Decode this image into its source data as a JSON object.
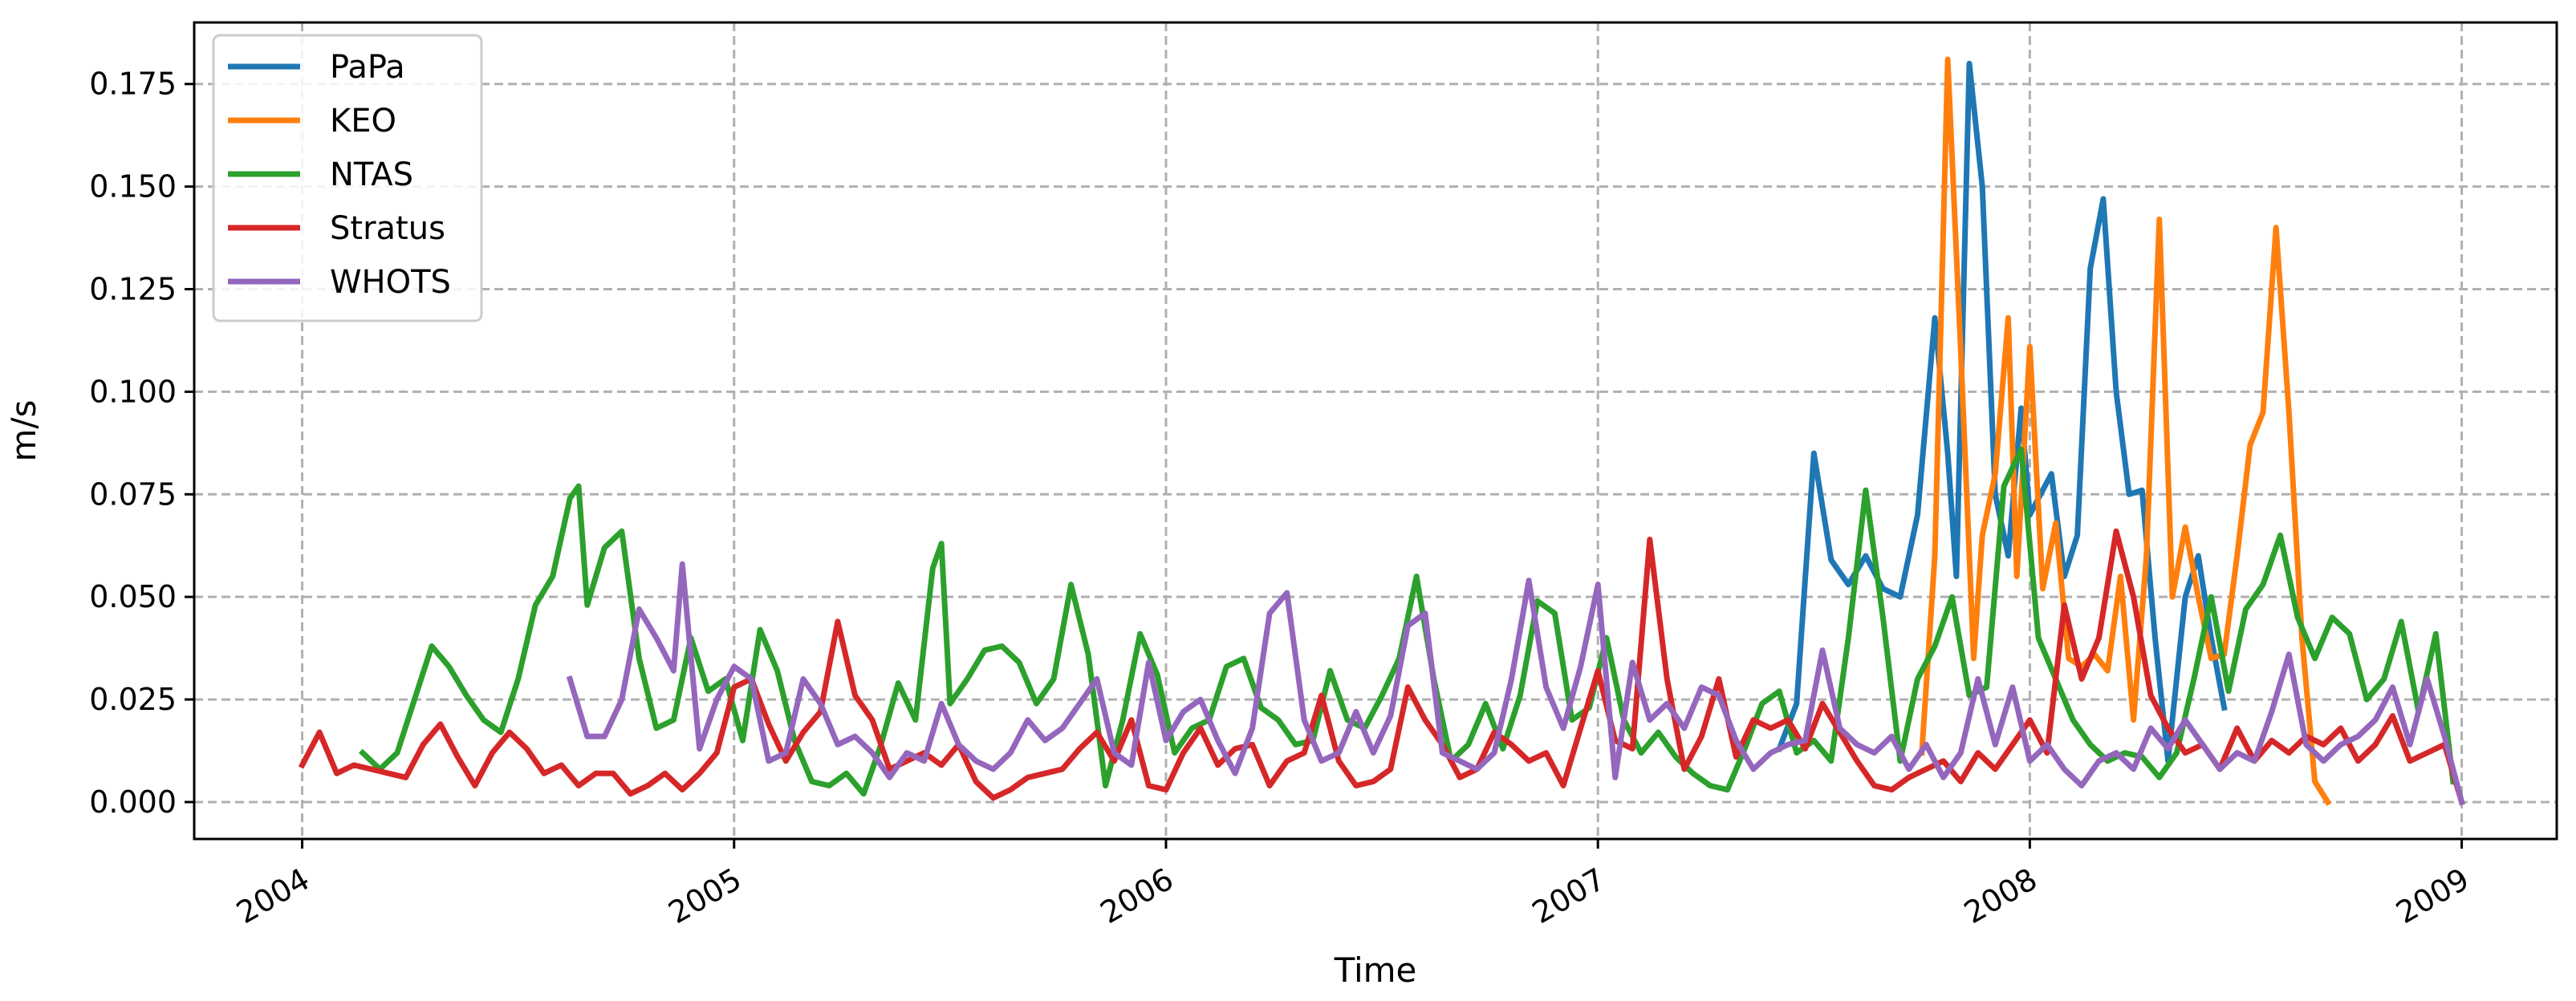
{
  "chart_data": {
    "type": "line",
    "title": "",
    "xlabel": "Time",
    "ylabel": "m/s",
    "xlim": [
      2003.75,
      2009.22
    ],
    "ylim": [
      -0.009,
      0.19
    ],
    "x_ticks": [
      2004,
      2005,
      2006,
      2007,
      2008,
      2009
    ],
    "x_tick_labels": [
      "2004",
      "2005",
      "2006",
      "2007",
      "2008",
      "2009"
    ],
    "y_ticks": [
      0.0,
      0.025,
      0.05,
      0.075,
      0.1,
      0.125,
      0.15,
      0.175
    ],
    "y_tick_labels": [
      "0.000",
      "0.025",
      "0.050",
      "0.075",
      "0.100",
      "0.125",
      "0.150",
      "0.175"
    ],
    "grid": true,
    "legend_position": "top-left",
    "series": [
      {
        "name": "PaPa",
        "color": "#1f77b4",
        "x": [
          2007.42,
          2007.46,
          2007.5,
          2007.54,
          2007.58,
          2007.62,
          2007.66,
          2007.7,
          2007.74,
          2007.78,
          2007.81,
          2007.83,
          2007.86,
          2007.89,
          2007.92,
          2007.95,
          2007.98,
          2008.0,
          2008.02,
          2008.05,
          2008.08,
          2008.11,
          2008.14,
          2008.17,
          2008.2,
          2008.23,
          2008.26,
          2008.29,
          2008.32,
          2008.36,
          2008.39,
          2008.42,
          2008.45
        ],
        "y": [
          0.013,
          0.024,
          0.085,
          0.059,
          0.053,
          0.06,
          0.052,
          0.05,
          0.07,
          0.118,
          0.085,
          0.055,
          0.18,
          0.15,
          0.075,
          0.06,
          0.096,
          0.07,
          0.074,
          0.08,
          0.055,
          0.065,
          0.13,
          0.147,
          0.1,
          0.075,
          0.076,
          0.04,
          0.01,
          0.05,
          0.06,
          0.04,
          0.023
        ]
      },
      {
        "name": "KEO",
        "color": "#ff7f0e",
        "x": [
          2007.75,
          2007.78,
          2007.81,
          2007.84,
          2007.87,
          2007.89,
          2007.92,
          2007.95,
          2007.97,
          2008.0,
          2008.03,
          2008.06,
          2008.09,
          2008.12,
          2008.15,
          2008.18,
          2008.21,
          2008.24,
          2008.27,
          2008.3,
          2008.33,
          2008.36,
          2008.39,
          2008.42,
          2008.45,
          2008.48,
          2008.51,
          2008.54,
          2008.57,
          2008.6,
          2008.63,
          2008.66,
          2008.69
        ],
        "y": [
          0.012,
          0.06,
          0.181,
          0.11,
          0.035,
          0.065,
          0.08,
          0.118,
          0.055,
          0.111,
          0.052,
          0.068,
          0.035,
          0.033,
          0.036,
          0.032,
          0.055,
          0.02,
          0.06,
          0.142,
          0.05,
          0.067,
          0.05,
          0.035,
          0.036,
          0.06,
          0.087,
          0.095,
          0.14,
          0.095,
          0.04,
          0.005,
          0.0
        ]
      },
      {
        "name": "NTAS",
        "color": "#2ca02c",
        "x": [
          2004.14,
          2004.18,
          2004.22,
          2004.26,
          2004.3,
          2004.34,
          2004.38,
          2004.42,
          2004.46,
          2004.5,
          2004.54,
          2004.58,
          2004.62,
          2004.64,
          2004.66,
          2004.7,
          2004.74,
          2004.78,
          2004.82,
          2004.86,
          2004.9,
          2004.94,
          2004.98,
          2005.02,
          2005.06,
          2005.1,
          2005.14,
          2005.18,
          2005.22,
          2005.26,
          2005.3,
          2005.34,
          2005.38,
          2005.42,
          2005.46,
          2005.48,
          2005.5,
          2005.54,
          2005.58,
          2005.62,
          2005.66,
          2005.7,
          2005.74,
          2005.78,
          2005.82,
          2005.86,
          2005.9,
          2005.94,
          2005.98,
          2006.02,
          2006.06,
          2006.1,
          2006.14,
          2006.18,
          2006.22,
          2006.26,
          2006.3,
          2006.34,
          2006.38,
          2006.42,
          2006.46,
          2006.5,
          2006.54,
          2006.58,
          2006.62,
          2006.66,
          2006.7,
          2006.74,
          2006.78,
          2006.82,
          2006.86,
          2006.9,
          2006.94,
          2006.98,
          2007.02,
          2007.06,
          2007.1,
          2007.14,
          2007.18,
          2007.22,
          2007.26,
          2007.3,
          2007.34,
          2007.38,
          2007.42,
          2007.46,
          2007.5,
          2007.54,
          2007.58,
          2007.62,
          2007.66,
          2007.7,
          2007.74,
          2007.78,
          2007.82,
          2007.86,
          2007.9,
          2007.94,
          2007.98,
          2008.02,
          2008.06,
          2008.1,
          2008.14,
          2008.18,
          2008.22,
          2008.26,
          2008.3,
          2008.34,
          2008.38,
          2008.42,
          2008.46,
          2008.5,
          2008.54,
          2008.58,
          2008.62,
          2008.66,
          2008.7,
          2008.74,
          2008.78,
          2008.82,
          2008.86,
          2008.9,
          2008.94,
          2008.98
        ],
        "y": [
          0.012,
          0.008,
          0.012,
          0.025,
          0.038,
          0.033,
          0.026,
          0.02,
          0.017,
          0.03,
          0.048,
          0.055,
          0.074,
          0.077,
          0.048,
          0.062,
          0.066,
          0.035,
          0.018,
          0.02,
          0.04,
          0.027,
          0.03,
          0.015,
          0.042,
          0.032,
          0.015,
          0.005,
          0.004,
          0.007,
          0.002,
          0.014,
          0.029,
          0.02,
          0.057,
          0.063,
          0.024,
          0.03,
          0.037,
          0.038,
          0.034,
          0.024,
          0.03,
          0.053,
          0.036,
          0.004,
          0.02,
          0.041,
          0.031,
          0.012,
          0.018,
          0.02,
          0.033,
          0.035,
          0.023,
          0.02,
          0.014,
          0.015,
          0.032,
          0.02,
          0.018,
          0.026,
          0.035,
          0.055,
          0.03,
          0.01,
          0.014,
          0.024,
          0.013,
          0.026,
          0.049,
          0.046,
          0.02,
          0.023,
          0.04,
          0.02,
          0.012,
          0.017,
          0.011,
          0.007,
          0.004,
          0.003,
          0.013,
          0.024,
          0.027,
          0.012,
          0.015,
          0.01,
          0.04,
          0.076,
          0.045,
          0.01,
          0.03,
          0.038,
          0.05,
          0.026,
          0.028,
          0.077,
          0.086,
          0.04,
          0.03,
          0.02,
          0.014,
          0.01,
          0.012,
          0.011,
          0.006,
          0.012,
          0.03,
          0.05,
          0.027,
          0.047,
          0.053,
          0.065,
          0.045,
          0.035,
          0.045,
          0.041,
          0.025,
          0.03,
          0.044,
          0.022,
          0.041,
          0.005
        ]
      },
      {
        "name": "Stratus",
        "color": "#d62728",
        "x": [
          2004.0,
          2004.04,
          2004.08,
          2004.12,
          2004.16,
          2004.2,
          2004.24,
          2004.28,
          2004.32,
          2004.36,
          2004.4,
          2004.44,
          2004.48,
          2004.52,
          2004.56,
          2004.6,
          2004.64,
          2004.68,
          2004.72,
          2004.76,
          2004.8,
          2004.84,
          2004.88,
          2004.92,
          2004.96,
          2005.0,
          2005.04,
          2005.08,
          2005.12,
          2005.16,
          2005.2,
          2005.24,
          2005.28,
          2005.32,
          2005.36,
          2005.4,
          2005.44,
          2005.48,
          2005.52,
          2005.56,
          2005.6,
          2005.64,
          2005.68,
          2005.72,
          2005.76,
          2005.8,
          2005.84,
          2005.88,
          2005.92,
          2005.96,
          2006.0,
          2006.04,
          2006.08,
          2006.12,
          2006.16,
          2006.2,
          2006.24,
          2006.28,
          2006.32,
          2006.36,
          2006.4,
          2006.44,
          2006.48,
          2006.52,
          2006.56,
          2006.6,
          2006.64,
          2006.68,
          2006.72,
          2006.76,
          2006.8,
          2006.84,
          2006.88,
          2006.92,
          2006.96,
          2007.0,
          2007.04,
          2007.08,
          2007.12,
          2007.16,
          2007.2,
          2007.24,
          2007.28,
          2007.32,
          2007.36,
          2007.4,
          2007.44,
          2007.48,
          2007.52,
          2007.56,
          2007.6,
          2007.64,
          2007.68,
          2007.72,
          2007.76,
          2007.8,
          2007.84,
          2007.88,
          2007.92,
          2007.96,
          2008.0,
          2008.04,
          2008.08,
          2008.12,
          2008.16,
          2008.2,
          2008.24,
          2008.28,
          2008.32,
          2008.36,
          2008.4,
          2008.44,
          2008.48,
          2008.52,
          2008.56,
          2008.6,
          2008.64,
          2008.68,
          2008.72,
          2008.76,
          2008.8,
          2008.84,
          2008.88,
          2008.92,
          2008.96,
          2009.0
        ],
        "y": [
          0.009,
          0.017,
          0.007,
          0.009,
          0.008,
          0.007,
          0.006,
          0.014,
          0.019,
          0.011,
          0.004,
          0.012,
          0.017,
          0.013,
          0.007,
          0.009,
          0.004,
          0.007,
          0.007,
          0.002,
          0.004,
          0.007,
          0.003,
          0.007,
          0.012,
          0.028,
          0.03,
          0.019,
          0.01,
          0.017,
          0.022,
          0.044,
          0.026,
          0.02,
          0.008,
          0.01,
          0.012,
          0.009,
          0.014,
          0.005,
          0.001,
          0.003,
          0.006,
          0.007,
          0.008,
          0.013,
          0.017,
          0.01,
          0.02,
          0.004,
          0.003,
          0.012,
          0.018,
          0.009,
          0.013,
          0.014,
          0.004,
          0.01,
          0.012,
          0.026,
          0.01,
          0.004,
          0.005,
          0.008,
          0.028,
          0.02,
          0.014,
          0.006,
          0.008,
          0.017,
          0.014,
          0.01,
          0.012,
          0.004,
          0.018,
          0.032,
          0.015,
          0.013,
          0.064,
          0.03,
          0.008,
          0.016,
          0.03,
          0.011,
          0.02,
          0.018,
          0.02,
          0.013,
          0.024,
          0.017,
          0.01,
          0.004,
          0.003,
          0.006,
          0.008,
          0.01,
          0.005,
          0.012,
          0.008,
          0.014,
          0.02,
          0.012,
          0.048,
          0.03,
          0.04,
          0.066,
          0.05,
          0.026,
          0.018,
          0.012,
          0.014,
          0.008,
          0.018,
          0.01,
          0.015,
          0.012,
          0.016,
          0.014,
          0.018,
          0.01,
          0.014,
          0.021,
          0.01,
          0.012,
          0.014,
          0.0
        ]
      },
      {
        "name": "WHOTS",
        "color": "#9467bd",
        "x": [
          2004.62,
          2004.66,
          2004.7,
          2004.74,
          2004.78,
          2004.82,
          2004.86,
          2004.88,
          2004.92,
          2004.96,
          2005.0,
          2005.04,
          2005.08,
          2005.12,
          2005.16,
          2005.2,
          2005.24,
          2005.28,
          2005.32,
          2005.36,
          2005.4,
          2005.44,
          2005.48,
          2005.52,
          2005.56,
          2005.6,
          2005.64,
          2005.68,
          2005.72,
          2005.76,
          2005.8,
          2005.84,
          2005.88,
          2005.92,
          2005.96,
          2006.0,
          2006.04,
          2006.08,
          2006.12,
          2006.16,
          2006.2,
          2006.24,
          2006.28,
          2006.32,
          2006.36,
          2006.4,
          2006.44,
          2006.48,
          2006.52,
          2006.56,
          2006.6,
          2006.64,
          2006.68,
          2006.72,
          2006.76,
          2006.8,
          2006.84,
          2006.88,
          2006.92,
          2006.96,
          2007.0,
          2007.04,
          2007.08,
          2007.12,
          2007.16,
          2007.2,
          2007.24,
          2007.28,
          2007.32,
          2007.36,
          2007.4,
          2007.44,
          2007.48,
          2007.52,
          2007.56,
          2007.6,
          2007.64,
          2007.68,
          2007.72,
          2007.76,
          2007.8,
          2007.84,
          2007.88,
          2007.92,
          2007.96,
          2008.0,
          2008.04,
          2008.08,
          2008.12,
          2008.16,
          2008.2,
          2008.24,
          2008.28,
          2008.32,
          2008.36,
          2008.4,
          2008.44,
          2008.48,
          2008.52,
          2008.56,
          2008.6,
          2008.64,
          2008.68,
          2008.72,
          2008.76,
          2008.8,
          2008.84,
          2008.88,
          2008.92,
          2008.96,
          2009.0
        ],
        "y": [
          0.03,
          0.016,
          0.016,
          0.025,
          0.047,
          0.04,
          0.032,
          0.058,
          0.013,
          0.025,
          0.033,
          0.03,
          0.01,
          0.012,
          0.03,
          0.024,
          0.014,
          0.016,
          0.012,
          0.006,
          0.012,
          0.01,
          0.024,
          0.014,
          0.01,
          0.008,
          0.012,
          0.02,
          0.015,
          0.018,
          0.024,
          0.03,
          0.012,
          0.009,
          0.034,
          0.015,
          0.022,
          0.025,
          0.015,
          0.007,
          0.018,
          0.046,
          0.051,
          0.02,
          0.01,
          0.012,
          0.022,
          0.012,
          0.021,
          0.043,
          0.046,
          0.012,
          0.01,
          0.008,
          0.012,
          0.03,
          0.054,
          0.028,
          0.018,
          0.033,
          0.053,
          0.006,
          0.034,
          0.02,
          0.024,
          0.018,
          0.028,
          0.026,
          0.015,
          0.008,
          0.012,
          0.014,
          0.015,
          0.037,
          0.018,
          0.014,
          0.012,
          0.016,
          0.008,
          0.014,
          0.006,
          0.012,
          0.03,
          0.014,
          0.028,
          0.01,
          0.014,
          0.008,
          0.004,
          0.01,
          0.012,
          0.008,
          0.018,
          0.013,
          0.02,
          0.014,
          0.008,
          0.012,
          0.01,
          0.022,
          0.036,
          0.014,
          0.01,
          0.014,
          0.016,
          0.02,
          0.028,
          0.014,
          0.03,
          0.016,
          0.0
        ]
      }
    ]
  }
}
